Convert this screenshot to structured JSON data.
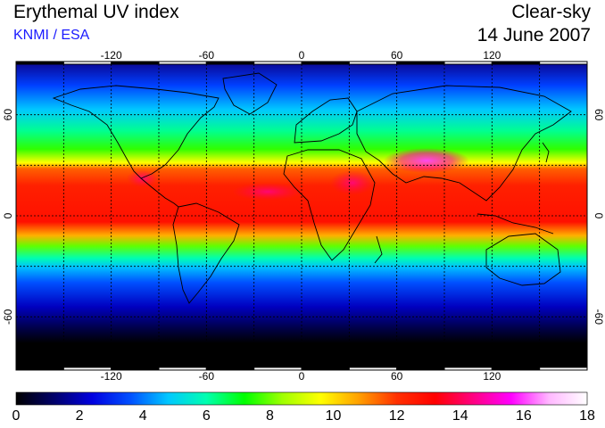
{
  "header": {
    "title": "Erythemal UV index",
    "credit": "KNMI / ESA",
    "mode": "Clear-sky",
    "date": "14 June 2007"
  },
  "colors": {
    "credit_blue": "#1a1aff",
    "colormap": [
      "#000000",
      "#00006a",
      "#0000e0",
      "#0050ff",
      "#00c8ff",
      "#00ffb0",
      "#00ff00",
      "#a0ff00",
      "#ffff00",
      "#ffa000",
      "#ff3000",
      "#ff0000",
      "#ff0080",
      "#ff00ff",
      "#ffb8ff",
      "#ffffff"
    ]
  },
  "map": {
    "projection": "equirectangular",
    "lon_ticks": [
      "-120",
      "-60",
      "0",
      "60",
      "120"
    ],
    "lat_ticks": [
      "60",
      "0",
      "-60"
    ],
    "grid": "dotted, 30 degree spacing",
    "lon_range": [
      -180,
      180
    ],
    "lat_range": [
      -90,
      90
    ]
  },
  "colorbar": {
    "min": 0,
    "max": 18,
    "ticks": [
      "0",
      "2",
      "4",
      "6",
      "8",
      "10",
      "12",
      "14",
      "16",
      "18"
    ]
  }
}
